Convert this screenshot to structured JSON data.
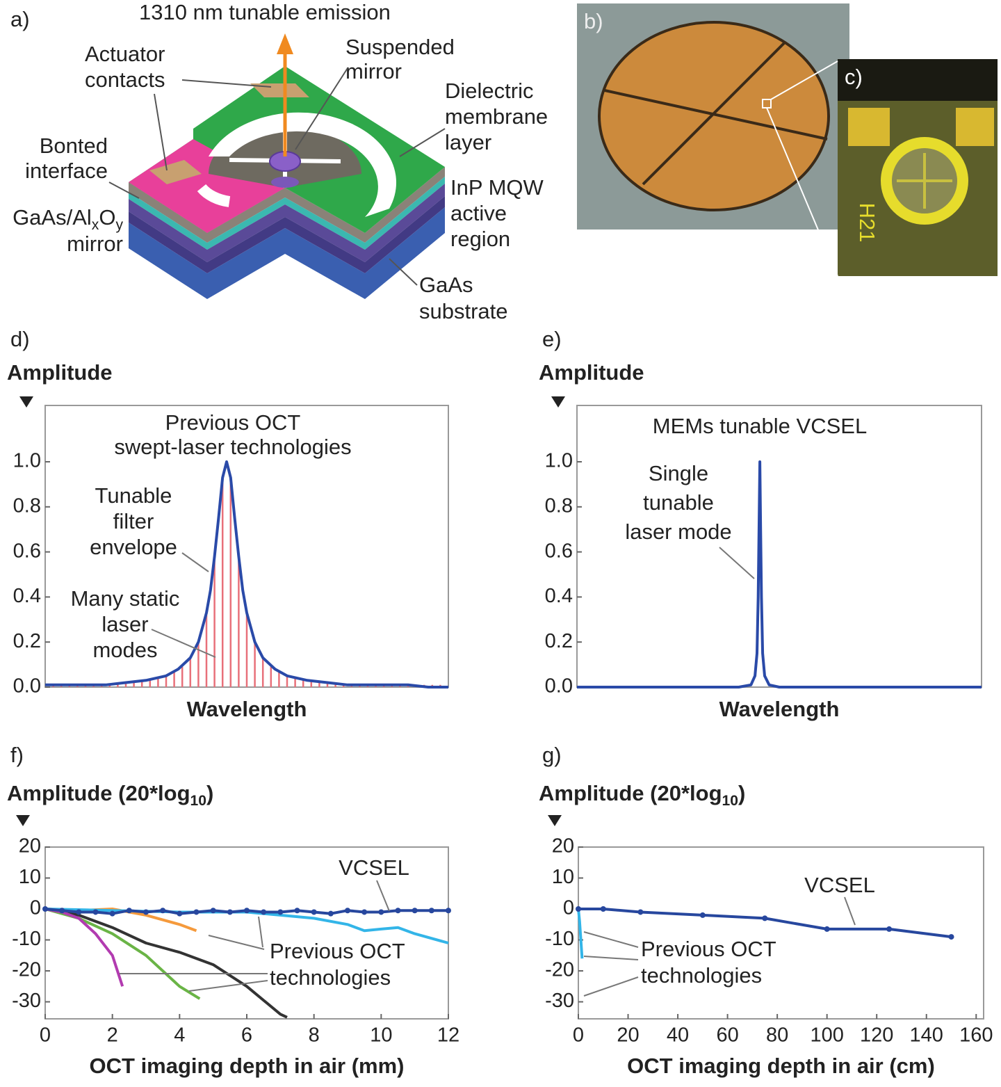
{
  "diagram": {
    "label": "a)",
    "emission": "1310 nm tunable emission",
    "actuator": [
      "Actuator",
      "contacts"
    ],
    "suspended": [
      "Suspended",
      "mirror"
    ],
    "dielectric": [
      "Dielectric",
      "membrane",
      "layer"
    ],
    "bonted": [
      "Bonted",
      "interface"
    ],
    "mqw": [
      "InP MQW",
      "active",
      "region"
    ],
    "dbr": [
      [
        "GaAs/Al",
        "x",
        "O",
        "y"
      ],
      "mirror"
    ],
    "substrate": [
      "GaAs",
      "substrate"
    ]
  },
  "photos": {
    "b": "b)",
    "c": "c)",
    "chip": "H21"
  },
  "chart_data": [
    {
      "type": "line",
      "label": "d)",
      "ylabel": "Amplitude",
      "xlabel": "Wavelength",
      "xlim": [
        0,
        100
      ],
      "ylim": [
        0,
        1.25
      ],
      "yticks": [
        {
          "value": 0,
          "label": "0.0"
        },
        0.2,
        0.4,
        0.6,
        0.8,
        {
          "value": 1,
          "label": "1.0"
        }
      ],
      "annotations": [
        [
          "Previous OCT",
          "swept-laser technologies"
        ],
        [
          "Tunable",
          "filter",
          "envelope"
        ],
        [
          "Many static",
          "laser",
          "modes"
        ]
      ],
      "series": [
        {
          "type": "bar",
          "color": "#e8707a",
          "x": [
            2,
            4,
            6,
            8,
            10,
            12,
            14,
            16,
            18,
            20,
            22,
            24,
            26,
            28,
            30,
            32,
            34,
            36,
            38,
            40,
            42,
            44,
            46,
            48,
            50,
            52,
            54,
            56,
            58,
            60,
            62,
            64,
            66,
            68,
            70,
            72,
            74,
            76,
            78,
            80,
            82,
            84,
            86,
            88,
            90,
            92,
            94,
            96,
            98
          ],
          "values": [
            0.01,
            0.01,
            0.01,
            0.01,
            0.01,
            0.01,
            0.01,
            0.01,
            0.02,
            0.02,
            0.02,
            0.03,
            0.03,
            0.04,
            0.05,
            0.07,
            0.09,
            0.13,
            0.2,
            0.33,
            0.58,
            0.93,
            0.93,
            0.58,
            0.33,
            0.2,
            0.13,
            0.09,
            0.07,
            0.05,
            0.04,
            0.03,
            0.03,
            0.02,
            0.02,
            0.02,
            0.01,
            0.01,
            0.01,
            0.01,
            0.01,
            0.01,
            0.01,
            0.01,
            0.01,
            0.01,
            0.01,
            0.01,
            0.01
          ]
        },
        {
          "color": "#2a4aa8",
          "x": [
            0,
            5,
            10,
            15,
            20,
            25,
            30,
            33,
            36,
            38,
            40,
            41,
            42,
            43,
            44,
            45,
            46,
            47,
            48,
            49,
            50,
            52,
            54,
            57,
            60,
            65,
            70,
            75,
            80,
            85,
            90,
            95,
            100
          ],
          "values": [
            0.01,
            0.01,
            0.01,
            0.01,
            0.02,
            0.03,
            0.05,
            0.08,
            0.13,
            0.2,
            0.33,
            0.43,
            0.58,
            0.75,
            0.93,
            1,
            0.93,
            0.75,
            0.58,
            0.43,
            0.33,
            0.2,
            0.13,
            0.08,
            0.05,
            0.03,
            0.02,
            0.01,
            0.01,
            0.01,
            0.01,
            0,
            0
          ]
        }
      ]
    },
    {
      "type": "line",
      "label": "e)",
      "ylabel": "Amplitude",
      "xlabel": "Wavelength",
      "xlim": [
        0,
        100
      ],
      "ylim": [
        0,
        1.25
      ],
      "yticks": [
        {
          "value": 0,
          "label": "0.0"
        },
        0.2,
        0.4,
        0.6,
        0.8,
        {
          "value": 1,
          "label": "1.0"
        }
      ],
      "annotations": [
        [
          "MEMs tunable VCSEL"
        ],
        [
          "Single",
          "tunable",
          "laser mode"
        ]
      ],
      "series": [
        {
          "color": "#2a4aa8",
          "x": [
            0,
            40,
            43,
            44,
            44.5,
            44.8,
            45,
            45.2,
            45.4,
            45.6,
            45.9,
            46.4,
            47.5,
            50,
            100
          ],
          "values": [
            0,
            0,
            0.01,
            0.05,
            0.15,
            0.4,
            0.7,
            1,
            0.7,
            0.4,
            0.15,
            0.05,
            0.01,
            0,
            0
          ]
        }
      ]
    },
    {
      "type": "line",
      "label": "f)",
      "ylabel": [
        "Amplitude (20*log",
        "10",
        ")"
      ],
      "xlabel": "OCT imaging depth in air (mm)",
      "xlim": [
        0,
        12
      ],
      "ylim": [
        -35.5,
        20
      ],
      "xticks": [
        0,
        2,
        4,
        6,
        8,
        10,
        12
      ],
      "yticks": [
        20,
        10,
        0,
        -10,
        -20,
        -30
      ],
      "annotations": [
        [
          "VCSEL"
        ],
        [
          "Previous OCT",
          "technologies"
        ]
      ],
      "series": [
        {
          "color": "#333333",
          "x": [
            0,
            1,
            2,
            3,
            4,
            5,
            6,
            7,
            7.2
          ],
          "values": [
            0,
            -2,
            -6,
            -11,
            -14,
            -18,
            -25,
            -34,
            -35
          ]
        },
        {
          "color": "#6ab446",
          "x": [
            0,
            1,
            2,
            3,
            4,
            4.6
          ],
          "values": [
            0,
            -3,
            -8,
            -15,
            -25,
            -29
          ]
        },
        {
          "color": "#b23bb0",
          "x": [
            0,
            0.5,
            1,
            1.5,
            2,
            2.3
          ],
          "values": [
            0,
            -1,
            -3,
            -8,
            -15,
            -25
          ]
        },
        {
          "color": "#f59a3c",
          "x": [
            0,
            1,
            2,
            3,
            4,
            4.5
          ],
          "values": [
            0,
            -0.5,
            0,
            -2,
            -5,
            -7
          ]
        },
        {
          "color": "#33b5e8",
          "x": [
            0,
            2,
            4,
            6,
            7,
            8,
            9,
            9.5,
            10,
            10.5,
            11,
            12
          ],
          "values": [
            0,
            -0.5,
            -1,
            -1,
            -2,
            -3,
            -5,
            -7,
            -6.5,
            -6,
            -8,
            -11
          ]
        },
        {
          "color": "#27479e",
          "markers": true,
          "x": [
            0,
            0.5,
            1,
            1.5,
            2,
            2.5,
            3,
            3.5,
            4,
            4.5,
            5,
            5.5,
            6,
            6.5,
            7,
            7.5,
            8,
            8.5,
            9,
            9.5,
            10,
            10.5,
            11,
            11.5,
            12
          ],
          "values": [
            0,
            -0.5,
            -1,
            -1,
            -1.5,
            -0.5,
            -1,
            -0.5,
            -1.5,
            -1,
            -0.5,
            -1,
            -0.5,
            -1,
            -1,
            -0.5,
            -1,
            -1.5,
            -0.5,
            -1,
            -1,
            -0.5,
            -0.5,
            -0.5,
            -0.5
          ]
        }
      ]
    },
    {
      "type": "line",
      "label": "g)",
      "ylabel": [
        "Amplitude (20*log",
        "10",
        ")"
      ],
      "xlabel": "OCT imaging depth in air (cm)",
      "xlim": [
        0,
        163
      ],
      "ylim": [
        -35.5,
        20
      ],
      "xticks": [
        0,
        20,
        40,
        60,
        80,
        100,
        120,
        140,
        160
      ],
      "yticks": [
        20,
        10,
        0,
        -10,
        -20,
        -30
      ],
      "annotations": [
        [
          "VCSEL"
        ],
        [
          "Previous OCT",
          "technologies"
        ]
      ],
      "series": [
        {
          "color": "#33b5e8",
          "x": [
            0,
            0.5,
            1,
            1.5
          ],
          "values": [
            0,
            -4,
            -10,
            -16
          ]
        },
        {
          "color": "#27479e",
          "markers": true,
          "x": [
            0,
            10,
            25,
            50,
            75,
            100,
            125,
            150
          ],
          "values": [
            0,
            0,
            -1,
            -2,
            -3,
            -6.5,
            -6.5,
            -9
          ]
        }
      ]
    }
  ]
}
